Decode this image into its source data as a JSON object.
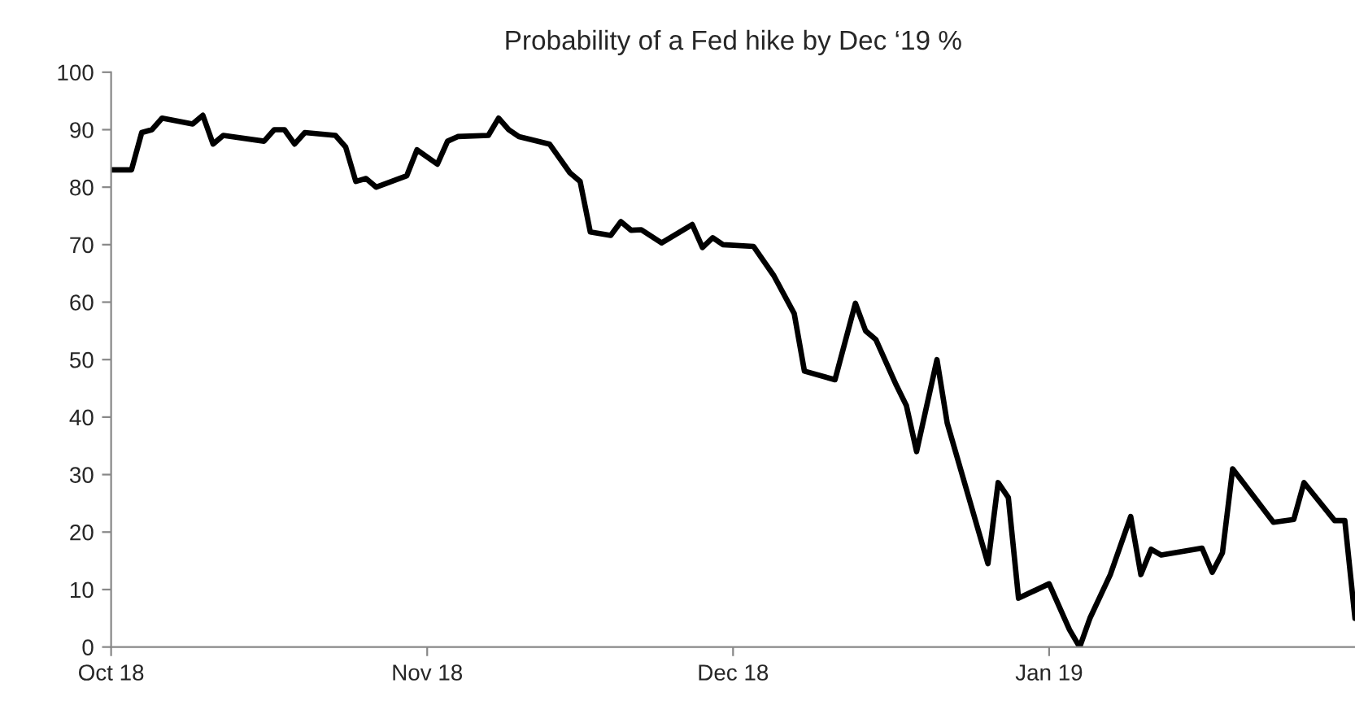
{
  "chart_data": {
    "type": "line",
    "title": "Probability of a Fed hike by Dec ‘19 %",
    "x": [
      "2018-10-01",
      "2018-10-03",
      "2018-10-04",
      "2018-10-05",
      "2018-10-06",
      "2018-10-09",
      "2018-10-10",
      "2018-10-11",
      "2018-10-12",
      "2018-10-16",
      "2018-10-17",
      "2018-10-18",
      "2018-10-19",
      "2018-10-20",
      "2018-10-23",
      "2018-10-24",
      "2018-10-25",
      "2018-10-26",
      "2018-10-27",
      "2018-10-30",
      "2018-10-31",
      "2018-11-02",
      "2018-11-03",
      "2018-11-04",
      "2018-11-07",
      "2018-11-08",
      "2018-11-09",
      "2018-11-10",
      "2018-11-13",
      "2018-11-15",
      "2018-11-16",
      "2018-11-17",
      "2018-11-19",
      "2018-11-20",
      "2018-11-21",
      "2018-11-22",
      "2018-11-24",
      "2018-11-27",
      "2018-11-28",
      "2018-11-29",
      "2018-11-30",
      "2018-12-03",
      "2018-12-05",
      "2018-12-07",
      "2018-12-08",
      "2018-12-11",
      "2018-12-13",
      "2018-12-14",
      "2018-12-15",
      "2018-12-17",
      "2018-12-18",
      "2018-12-19",
      "2018-12-21",
      "2018-12-22",
      "2018-12-26",
      "2018-12-27",
      "2018-12-28",
      "2018-12-29",
      "2019-01-01",
      "2019-01-03",
      "2019-01-04",
      "2019-01-05",
      "2019-01-07",
      "2019-01-09",
      "2019-01-10",
      "2019-01-11",
      "2019-01-12",
      "2019-01-16",
      "2019-01-17",
      "2019-01-18",
      "2019-01-19",
      "2019-01-23",
      "2019-01-25",
      "2019-01-26",
      "2019-01-29",
      "2019-01-30",
      "2019-01-31"
    ],
    "series": [
      {
        "color": "#000000",
        "values": [
          83,
          83,
          89.5,
          90,
          92,
          91,
          92.5,
          87.5,
          89,
          88,
          90,
          90,
          87.5,
          89.5,
          89,
          87,
          81,
          81.5,
          80,
          82,
          86.5,
          84,
          88,
          88.8,
          89,
          92,
          90,
          88.8,
          87.5,
          82.5,
          81,
          72.2,
          71.6,
          74,
          72.5,
          72.6,
          70.3,
          73.5,
          69.5,
          71.2,
          70,
          69.7,
          64.6,
          58,
          48,
          46.5,
          59.8,
          55,
          53.5,
          45.6,
          42,
          34,
          50,
          39,
          14.5,
          28.6,
          26,
          8.5,
          11,
          3,
          0,
          5,
          12.6,
          22.7,
          12.6,
          17,
          16,
          17.2,
          13,
          16.4,
          31,
          21.7,
          22.2,
          28.6,
          22,
          22,
          5
        ]
      }
    ],
    "xlim": [
      "2018-10-01",
      "2019-01-31"
    ],
    "xticks": [
      {
        "value": "2018-10-01",
        "label": "Oct 18"
      },
      {
        "value": "2018-11-01",
        "label": "Nov 18"
      },
      {
        "value": "2018-12-01",
        "label": "Dec 18"
      },
      {
        "value": "2019-01-01",
        "label": "Jan 19"
      }
    ],
    "ylim": [
      0,
      100
    ],
    "yticks": [
      0,
      10,
      20,
      30,
      40,
      50,
      60,
      70,
      80,
      90,
      100
    ],
    "grid": false,
    "marker": "none",
    "line_style": "solid"
  }
}
